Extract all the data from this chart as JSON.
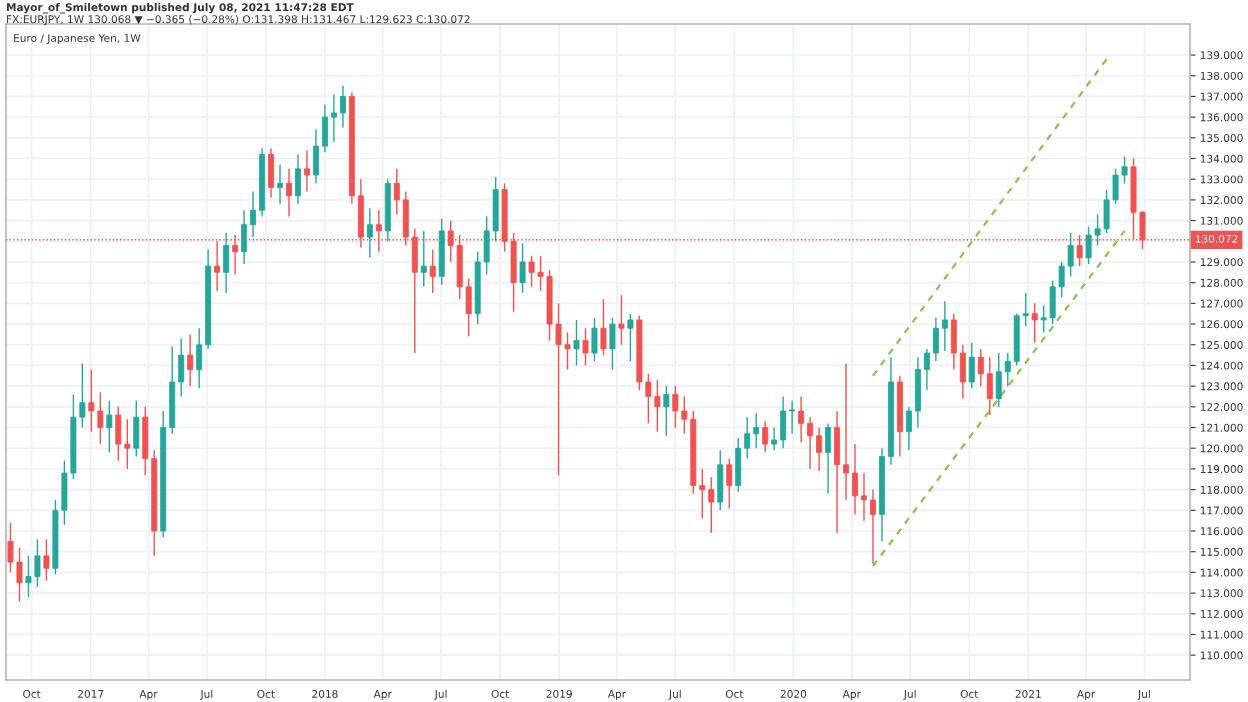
{
  "chart_data": {
    "type": "candlestick",
    "title": "Euro / Japanese Yen, 1W",
    "annotations": [
      "Mayor_of_Smiletown published July 08, 2021 11:47:28 EDT",
      "FX:EURJPY, 1W 130.068 ▼ −0.365 (−0.28%) O:131.398 H:131.467 L:129.623 C:130.072"
    ],
    "x": [
      "2016-08-29",
      "2016-09-12",
      "2016-09-26",
      "2016-10-10",
      "2016-10-24",
      "2016-11-07",
      "2016-11-21",
      "2016-12-05",
      "2016-12-19",
      "2017-01-02",
      "2017-01-16",
      "2017-01-30",
      "2017-02-13",
      "2017-02-27",
      "2017-03-13",
      "2017-03-27",
      "2017-04-10",
      "2017-04-24",
      "2017-05-08",
      "2017-05-22",
      "2017-06-05",
      "2017-06-19",
      "2017-07-03",
      "2017-07-17",
      "2017-07-31",
      "2017-08-14",
      "2017-08-28",
      "2017-09-11",
      "2017-09-25",
      "2017-10-09",
      "2017-10-23",
      "2017-11-06",
      "2017-11-20",
      "2017-12-04",
      "2017-12-18",
      "2018-01-01",
      "2018-01-15",
      "2018-01-29",
      "2018-02-12",
      "2018-02-26",
      "2018-03-12",
      "2018-03-26",
      "2018-04-09",
      "2018-04-23",
      "2018-05-07",
      "2018-05-21",
      "2018-06-04",
      "2018-06-18",
      "2018-07-02",
      "2018-07-16",
      "2018-07-30",
      "2018-08-13",
      "2018-08-27",
      "2018-09-10",
      "2018-09-24",
      "2018-10-08",
      "2018-10-22",
      "2018-11-05",
      "2018-11-19",
      "2018-12-03",
      "2018-12-17",
      "2018-12-31",
      "2019-01-14",
      "2019-01-28",
      "2019-02-11",
      "2019-02-25",
      "2019-03-11",
      "2019-03-25",
      "2019-04-08",
      "2019-04-22",
      "2019-05-06",
      "2019-05-20",
      "2019-06-03",
      "2019-06-17",
      "2019-07-01",
      "2019-07-15",
      "2019-07-29",
      "2019-08-12",
      "2019-08-26",
      "2019-09-09",
      "2019-09-23",
      "2019-10-07",
      "2019-10-21",
      "2019-11-04",
      "2019-11-18",
      "2019-12-02",
      "2019-12-16",
      "2019-12-30",
      "2020-01-13",
      "2020-01-27",
      "2020-02-10",
      "2020-02-24",
      "2020-03-09",
      "2020-03-23",
      "2020-04-06",
      "2020-04-20",
      "2020-05-04",
      "2020-05-18",
      "2020-06-01",
      "2020-06-15",
      "2020-06-29",
      "2020-07-13",
      "2020-07-27",
      "2020-08-10",
      "2020-08-24",
      "2020-09-07",
      "2020-09-21",
      "2020-10-05",
      "2020-10-19",
      "2020-11-02",
      "2020-11-16",
      "2020-11-30",
      "2020-12-14",
      "2020-12-28",
      "2021-01-11",
      "2021-01-25",
      "2021-02-08",
      "2021-02-22",
      "2021-03-08",
      "2021-03-22",
      "2021-04-05",
      "2021-04-19",
      "2021-05-03",
      "2021-05-17",
      "2021-05-31",
      "2021-06-14",
      "2021-06-28"
    ],
    "ohlc": [
      [
        115.5,
        116.4,
        114.0,
        114.5
      ],
      [
        114.5,
        115.2,
        112.6,
        113.5
      ],
      [
        113.5,
        114.8,
        112.8,
        113.8
      ],
      [
        113.8,
        115.6,
        113.3,
        114.8
      ],
      [
        114.8,
        115.6,
        113.6,
        114.2
      ],
      [
        114.2,
        117.5,
        113.9,
        117.0
      ],
      [
        117.0,
        119.4,
        116.3,
        118.8
      ],
      [
        118.8,
        122.6,
        118.5,
        121.5
      ],
      [
        121.5,
        124.1,
        121.0,
        122.2
      ],
      [
        122.2,
        123.8,
        120.8,
        121.8
      ],
      [
        121.8,
        122.7,
        120.2,
        121.0
      ],
      [
        121.0,
        122.3,
        119.8,
        121.6
      ],
      [
        121.6,
        122.0,
        119.4,
        120.2
      ],
      [
        120.2,
        121.4,
        119.0,
        120.0
      ],
      [
        120.0,
        122.3,
        119.6,
        121.5
      ],
      [
        121.5,
        122.0,
        118.7,
        119.5
      ],
      [
        119.5,
        119.9,
        114.8,
        116.0
      ],
      [
        116.0,
        121.8,
        115.7,
        121.0
      ],
      [
        121.0,
        124.9,
        120.7,
        123.2
      ],
      [
        123.2,
        125.3,
        122.5,
        124.5
      ],
      [
        124.5,
        125.5,
        123.0,
        123.8
      ],
      [
        123.8,
        125.8,
        122.9,
        125.0
      ],
      [
        125.0,
        129.6,
        124.8,
        128.8
      ],
      [
        128.8,
        130.0,
        127.6,
        128.5
      ],
      [
        128.5,
        130.4,
        127.5,
        129.8
      ],
      [
        129.8,
        130.3,
        128.4,
        129.5
      ],
      [
        129.5,
        131.5,
        128.9,
        130.8
      ],
      [
        130.8,
        132.4,
        130.2,
        131.5
      ],
      [
        131.5,
        134.5,
        131.2,
        134.2
      ],
      [
        134.2,
        134.5,
        132.1,
        132.6
      ],
      [
        132.6,
        133.7,
        131.8,
        132.8
      ],
      [
        132.8,
        133.5,
        131.2,
        132.2
      ],
      [
        132.2,
        134.2,
        131.8,
        133.5
      ],
      [
        133.5,
        134.4,
        132.4,
        133.2
      ],
      [
        133.2,
        135.4,
        132.8,
        134.6
      ],
      [
        134.6,
        136.6,
        134.3,
        136.0
      ],
      [
        136.0,
        137.1,
        134.8,
        136.2
      ],
      [
        136.2,
        137.5,
        135.5,
        137.0
      ],
      [
        137.0,
        137.2,
        131.8,
        132.2
      ],
      [
        132.2,
        133.0,
        129.7,
        130.2
      ],
      [
        130.2,
        131.6,
        129.2,
        130.8
      ],
      [
        130.8,
        131.5,
        129.5,
        130.5
      ],
      [
        130.5,
        133.0,
        130.0,
        132.8
      ],
      [
        132.8,
        133.5,
        131.3,
        132.0
      ],
      [
        132.0,
        132.4,
        129.8,
        130.2
      ],
      [
        130.2,
        130.6,
        124.6,
        128.5
      ],
      [
        128.5,
        130.5,
        127.8,
        128.8
      ],
      [
        128.8,
        129.6,
        127.5,
        128.3
      ],
      [
        128.3,
        131.1,
        127.9,
        130.5
      ],
      [
        130.5,
        131.0,
        129.0,
        129.8
      ],
      [
        129.8,
        130.3,
        127.2,
        127.8
      ],
      [
        127.8,
        128.2,
        125.4,
        126.5
      ],
      [
        126.5,
        129.5,
        126.0,
        129.0
      ],
      [
        129.0,
        131.2,
        128.4,
        130.5
      ],
      [
        130.5,
        133.1,
        130.0,
        132.5
      ],
      [
        132.5,
        132.8,
        129.5,
        130.0
      ],
      [
        130.0,
        130.4,
        126.6,
        128.0
      ],
      [
        128.0,
        129.9,
        127.5,
        129.0
      ],
      [
        129.0,
        129.3,
        127.8,
        128.5
      ],
      [
        128.5,
        129.3,
        127.6,
        128.3
      ],
      [
        128.3,
        128.6,
        125.2,
        126.0
      ],
      [
        126.0,
        127.0,
        118.7,
        125.0
      ],
      [
        125.0,
        125.6,
        123.8,
        124.8
      ],
      [
        124.8,
        126.2,
        124.0,
        125.2
      ],
      [
        125.2,
        125.8,
        124.0,
        124.6
      ],
      [
        124.6,
        126.3,
        124.2,
        125.8
      ],
      [
        125.8,
        127.2,
        124.5,
        124.8
      ],
      [
        124.8,
        126.3,
        123.8,
        126.0
      ],
      [
        126.0,
        127.4,
        125.0,
        125.8
      ],
      [
        125.8,
        126.5,
        124.2,
        126.2
      ],
      [
        126.2,
        126.4,
        122.8,
        123.2
      ],
      [
        123.2,
        123.6,
        121.2,
        122.5
      ],
      [
        122.5,
        123.3,
        120.8,
        122.0
      ],
      [
        122.0,
        123.0,
        120.6,
        122.6
      ],
      [
        122.6,
        123.0,
        121.0,
        121.8
      ],
      [
        121.8,
        122.5,
        120.7,
        121.4
      ],
      [
        121.4,
        121.8,
        117.8,
        118.2
      ],
      [
        118.2,
        119.0,
        116.6,
        118.0
      ],
      [
        118.0,
        118.6,
        115.9,
        117.4
      ],
      [
        117.4,
        119.9,
        117.0,
        119.2
      ],
      [
        119.2,
        119.5,
        117.1,
        118.2
      ],
      [
        118.2,
        120.5,
        117.9,
        120.0
      ],
      [
        120.0,
        121.5,
        119.5,
        120.7
      ],
      [
        120.7,
        121.7,
        120.0,
        121.0
      ],
      [
        121.0,
        121.3,
        119.8,
        120.2
      ],
      [
        120.2,
        121.0,
        119.9,
        120.4
      ],
      [
        120.4,
        122.5,
        120.0,
        121.8
      ],
      [
        121.8,
        122.3,
        120.7,
        121.8
      ],
      [
        121.8,
        122.5,
        120.3,
        121.2
      ],
      [
        121.2,
        121.5,
        119.0,
        120.6
      ],
      [
        120.6,
        121.0,
        118.9,
        119.8
      ],
      [
        119.8,
        121.2,
        117.8,
        121.0
      ],
      [
        121.0,
        121.8,
        115.9,
        119.2
      ],
      [
        119.2,
        124.1,
        117.5,
        118.8
      ],
      [
        118.8,
        120.2,
        116.8,
        117.7
      ],
      [
        117.7,
        118.8,
        116.5,
        117.5
      ],
      [
        117.5,
        118.0,
        114.4,
        116.8
      ],
      [
        116.8,
        120.0,
        115.5,
        119.6
      ],
      [
        119.6,
        124.4,
        119.2,
        123.2
      ],
      [
        123.2,
        123.5,
        119.6,
        120.8
      ],
      [
        120.8,
        122.0,
        119.9,
        121.8
      ],
      [
        121.8,
        124.4,
        121.0,
        123.8
      ],
      [
        123.8,
        124.8,
        122.8,
        124.6
      ],
      [
        124.6,
        126.3,
        124.2,
        125.8
      ],
      [
        125.8,
        127.1,
        124.7,
        126.2
      ],
      [
        126.2,
        126.5,
        123.8,
        124.6
      ],
      [
        124.6,
        125.0,
        122.4,
        123.2
      ],
      [
        123.2,
        125.1,
        122.9,
        124.4
      ],
      [
        124.4,
        124.8,
        123.0,
        123.6
      ],
      [
        123.6,
        124.4,
        121.6,
        122.4
      ],
      [
        122.4,
        124.6,
        122.0,
        123.7
      ],
      [
        123.7,
        124.6,
        123.0,
        124.2
      ],
      [
        124.2,
        126.5,
        124.0,
        126.4
      ],
      [
        126.4,
        127.5,
        125.9,
        126.5
      ],
      [
        126.5,
        127.0,
        125.1,
        126.2
      ],
      [
        126.2,
        126.9,
        125.6,
        126.3
      ],
      [
        126.3,
        128.1,
        126.0,
        127.8
      ],
      [
        127.8,
        129.0,
        127.3,
        128.8
      ],
      [
        128.8,
        130.4,
        128.3,
        129.8
      ],
      [
        129.8,
        130.3,
        128.8,
        129.2
      ],
      [
        129.2,
        130.7,
        128.9,
        130.3
      ],
      [
        130.3,
        131.3,
        129.8,
        130.6
      ],
      [
        130.6,
        132.5,
        130.4,
        132.0
      ],
      [
        132.0,
        133.5,
        131.8,
        133.2
      ],
      [
        133.2,
        134.1,
        132.8,
        133.6
      ],
      [
        133.6,
        134.0,
        130.1,
        131.4
      ],
      [
        131.398,
        131.467,
        129.623,
        130.072
      ]
    ],
    "series": [
      {
        "type": "line",
        "color": "#8bc34a",
        "line_style": "dashed",
        "x": [
          "2020-05-04",
          "2021-05-03"
        ],
        "values": [
          123.5,
          138.8
        ]
      },
      {
        "type": "line",
        "color": "#8bc34a",
        "line_style": "dashed",
        "x": [
          "2020-05-04",
          "2021-05-31"
        ],
        "values": [
          114.3,
          130.5
        ]
      }
    ],
    "ref_lines": [
      {
        "axis": "y",
        "value": 130.072,
        "label": "130.072",
        "color": "#ef5350",
        "line_style": "dotted"
      }
    ],
    "xlim": [
      "2016-08-22",
      "2021-09-10"
    ],
    "xticks": [
      {
        "value": "2016-10-01",
        "label": "Oct"
      },
      {
        "value": "2017-01-01",
        "label": "2017"
      },
      {
        "value": "2017-04-01",
        "label": "Apr"
      },
      {
        "value": "2017-07-01",
        "label": "Jul"
      },
      {
        "value": "2017-10-01",
        "label": "Oct"
      },
      {
        "value": "2018-01-01",
        "label": "2018"
      },
      {
        "value": "2018-04-01",
        "label": "Apr"
      },
      {
        "value": "2018-07-01",
        "label": "Jul"
      },
      {
        "value": "2018-10-01",
        "label": "Oct"
      },
      {
        "value": "2019-01-01",
        "label": "2019"
      },
      {
        "value": "2019-04-01",
        "label": "Apr"
      },
      {
        "value": "2019-07-01",
        "label": "Jul"
      },
      {
        "value": "2019-10-01",
        "label": "Oct"
      },
      {
        "value": "2020-01-01",
        "label": "2020"
      },
      {
        "value": "2020-04-01",
        "label": "Apr"
      },
      {
        "value": "2020-07-01",
        "label": "Jul"
      },
      {
        "value": "2020-10-01",
        "label": "Oct"
      },
      {
        "value": "2021-01-01",
        "label": "2021"
      },
      {
        "value": "2021-04-01",
        "label": "Apr"
      },
      {
        "value": "2021-07-01",
        "label": "Jul"
      }
    ],
    "ylim": [
      108.8,
      140.5
    ],
    "yticks": [
      {
        "value": 110,
        "label": "110.000"
      },
      {
        "value": 111,
        "label": "111.000"
      },
      {
        "value": 112,
        "label": "112.000"
      },
      {
        "value": 113,
        "label": "113.000"
      },
      {
        "value": 114,
        "label": "114.000"
      },
      {
        "value": 115,
        "label": "115.000"
      },
      {
        "value": 116,
        "label": "116.000"
      },
      {
        "value": 117,
        "label": "117.000"
      },
      {
        "value": 118,
        "label": "118.000"
      },
      {
        "value": 119,
        "label": "119.000"
      },
      {
        "value": 120,
        "label": "120.000"
      },
      {
        "value": 121,
        "label": "121.000"
      },
      {
        "value": 122,
        "label": "122.000"
      },
      {
        "value": 123,
        "label": "123.000"
      },
      {
        "value": 124,
        "label": "124.000"
      },
      {
        "value": 125,
        "label": "125.000"
      },
      {
        "value": 126,
        "label": "126.000"
      },
      {
        "value": 127,
        "label": "127.000"
      },
      {
        "value": 128,
        "label": "128.000"
      },
      {
        "value": 129,
        "label": "129.000"
      },
      {
        "value": 130,
        "label": null
      },
      {
        "value": 131,
        "label": "131.000"
      },
      {
        "value": 132,
        "label": "132.000"
      },
      {
        "value": 133,
        "label": "133.000"
      },
      {
        "value": 134,
        "label": "134.000"
      },
      {
        "value": 135,
        "label": "135.000"
      },
      {
        "value": 136,
        "label": "136.000"
      },
      {
        "value": 137,
        "label": "137.000"
      },
      {
        "value": 138,
        "label": "138.000"
      },
      {
        "value": 139,
        "label": "139.000"
      }
    ],
    "grid": true
  }
}
